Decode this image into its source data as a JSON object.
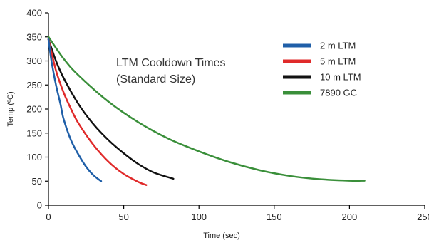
{
  "chart_data": {
    "type": "line",
    "title_lines": [
      "LTM Cooldown Times",
      "(Standard Size)"
    ],
    "xlabel": "Time (sec)",
    "ylabel": "Temp (ºC)",
    "xlim": [
      0,
      250
    ],
    "ylim": [
      0,
      400
    ],
    "xticks": [
      0,
      50,
      100,
      150,
      200,
      250
    ],
    "yticks": [
      0,
      50,
      100,
      150,
      200,
      250,
      300,
      350,
      400
    ],
    "grid": false,
    "legend_position": "top-right",
    "series": [
      {
        "name": "2 m LTM",
        "color": "#1f5fa8",
        "x": [
          0,
          2,
          5,
          8,
          10,
          15,
          20,
          25,
          30,
          35
        ],
        "y": [
          345,
          300,
          250,
          210,
          180,
          135,
          105,
          80,
          62,
          50
        ]
      },
      {
        "name": "5 m LTM",
        "color": "#e02a2a",
        "x": [
          0,
          5,
          10,
          15,
          20,
          30,
          40,
          50,
          60,
          65
        ],
        "y": [
          345,
          280,
          235,
          200,
          170,
          125,
          90,
          65,
          48,
          42
        ]
      },
      {
        "name": "10 m LTM",
        "color": "#111111",
        "x": [
          0,
          5,
          10,
          20,
          30,
          40,
          50,
          60,
          70,
          83
        ],
        "y": [
          345,
          300,
          265,
          210,
          168,
          135,
          108,
          85,
          68,
          55
        ]
      },
      {
        "name": "7890 GC",
        "color": "#3a8f3a",
        "x": [
          0,
          10,
          20,
          40,
          60,
          80,
          100,
          120,
          140,
          160,
          180,
          200,
          210
        ],
        "y": [
          350,
          305,
          270,
          215,
          172,
          138,
          112,
          90,
          73,
          61,
          54,
          51,
          51
        ]
      }
    ]
  }
}
